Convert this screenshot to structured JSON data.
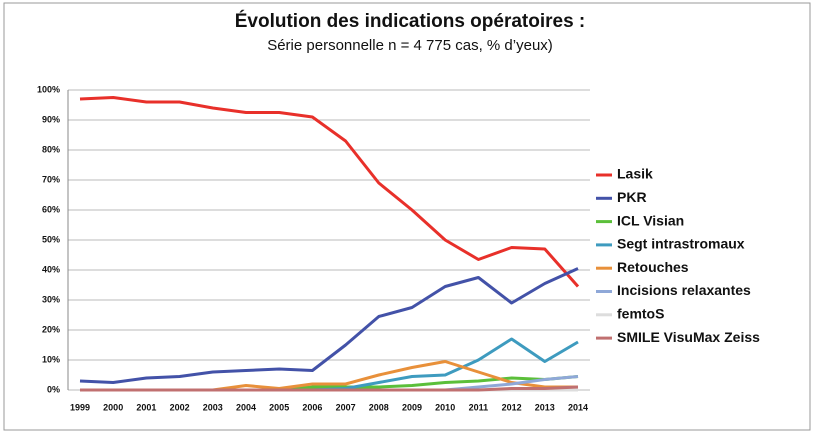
{
  "chart_data": {
    "type": "line",
    "title": "Évolution des indications opératoires :",
    "subtitle": "Série personnelle n = 4 775 cas, % d’yeux)",
    "categories": [
      "1999",
      "2000",
      "2001",
      "2002",
      "2003",
      "2004",
      "2005",
      "2006",
      "2007",
      "2008",
      "2009",
      "2010",
      "2011",
      "2012",
      "2013",
      "2014"
    ],
    "series": [
      {
        "name": "Lasik",
        "color": "#e8302a",
        "values": [
          97,
          97.5,
          96,
          96,
          94,
          92.5,
          92.5,
          91,
          83,
          69,
          60,
          50,
          43.5,
          47.5,
          47,
          34.5
        ]
      },
      {
        "name": "PKR",
        "color": "#4352a8",
        "values": [
          3,
          2.5,
          4,
          4.5,
          6,
          6.5,
          7,
          6.5,
          15,
          24.5,
          27.5,
          34.5,
          37.5,
          29,
          35.5,
          40.5
        ]
      },
      {
        "name": "ICL Visian",
        "color": "#5bbf3a",
        "values": [
          0,
          0,
          0,
          0,
          0,
          0,
          0,
          1,
          1,
          1,
          1.5,
          2.5,
          3,
          4,
          3.5,
          4.5
        ]
      },
      {
        "name": "Segt intrastromaux",
        "color": "#3e9bbf",
        "values": [
          0,
          0,
          0,
          0,
          0,
          0,
          0,
          0,
          0.5,
          2.5,
          4.5,
          5,
          10,
          17,
          9.5,
          16
        ]
      },
      {
        "name": "Retouches",
        "color": "#e8903a",
        "values": [
          0,
          0,
          0,
          0,
          0,
          1.5,
          0.5,
          2,
          2,
          5,
          7.5,
          9.5,
          6,
          2.5,
          1,
          1
        ]
      },
      {
        "name": "Incisions relaxantes",
        "color": "#8fa8d8",
        "values": [
          0,
          0,
          0,
          0,
          0,
          0,
          0,
          0,
          0,
          0,
          0,
          0,
          1,
          2,
          3.5,
          4.5
        ]
      },
      {
        "name": "femtoS",
        "color": "#dddddd",
        "values": [
          0,
          0,
          0,
          0,
          0,
          0,
          0,
          0,
          0,
          0,
          0,
          0,
          0,
          0,
          0,
          0
        ]
      },
      {
        "name": "SMILE VisuMax Zeiss",
        "color": "#c07070",
        "values": [
          0,
          0,
          0,
          0,
          0,
          0,
          0,
          0,
          0,
          0,
          0,
          0,
          0,
          0.5,
          0.5,
          1
        ]
      }
    ],
    "ylim": [
      0,
      100
    ],
    "yticks": [
      {
        "value": 0,
        "label": "0%"
      },
      {
        "value": 10,
        "label": "10%"
      },
      {
        "value": 20,
        "label": "20%"
      },
      {
        "value": 30,
        "label": "30%"
      },
      {
        "value": 40,
        "label": "40%"
      },
      {
        "value": 50,
        "label": "50%"
      },
      {
        "value": 60,
        "label": "60%"
      },
      {
        "value": 70,
        "label": "70%"
      },
      {
        "value": 80,
        "label": "80%"
      },
      {
        "value": 90,
        "label": "90%"
      },
      {
        "value": 100,
        "label": "100%"
      }
    ],
    "grid": true
  }
}
